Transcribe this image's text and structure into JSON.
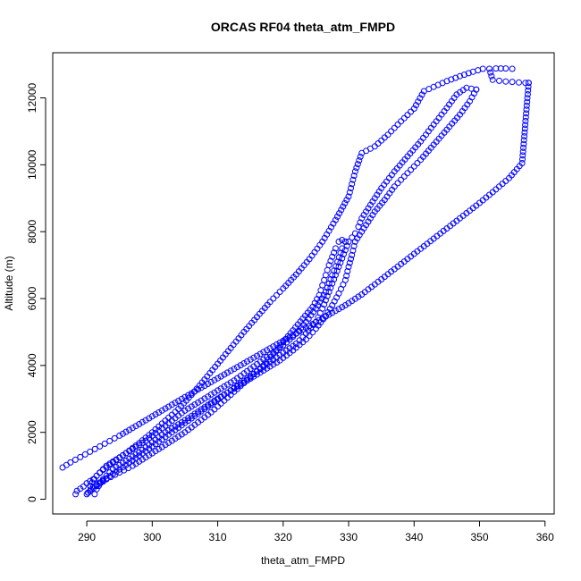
{
  "chart_data": {
    "type": "scatter",
    "title": "ORCAS RF04 theta_atm_FMPD",
    "xlabel": "theta_atm_FMPD",
    "ylabel": "Altitude (m)",
    "xlim": [
      284.8,
      361.4
    ],
    "ylim": [
      -440,
      13350
    ],
    "xticks": [
      290,
      300,
      310,
      320,
      330,
      340,
      350,
      360
    ],
    "yticks": [
      0,
      2000,
      4000,
      6000,
      8000,
      10000,
      12000
    ],
    "marker": "open-circle",
    "color": "#0000ff",
    "grid": false,
    "legend": "none",
    "series": [
      {
        "x": [
          286.3,
          287.5,
          289.0,
          290.5,
          292.0,
          293.5,
          295.0,
          297.0,
          299.5,
          302.0,
          304.5,
          307.0,
          309.5,
          312.0,
          314.5,
          317.0,
          319.5,
          322.0,
          324.5,
          327.0,
          329.5,
          332.0,
          334.5,
          337.0,
          339.5,
          342.0,
          344.5,
          347.0,
          349.5,
          352.0,
          354.5,
          356.5,
          357.5
        ],
        "y": [
          950,
          1100,
          1260,
          1420,
          1580,
          1740,
          1900,
          2130,
          2420,
          2710,
          3000,
          3280,
          3560,
          3840,
          4120,
          4400,
          4680,
          4960,
          5240,
          5520,
          5800,
          6120,
          6500,
          6880,
          7260,
          7640,
          8020,
          8400,
          8780,
          9180,
          9600,
          10050,
          12450
        ]
      },
      {
        "x": [
          357.5,
          357.0,
          356.0,
          355.0,
          354.0,
          353.0,
          352.0,
          351.5,
          352.5,
          354.0,
          355.0
        ],
        "y": [
          12450,
          12450,
          12460,
          12480,
          12490,
          12510,
          12540,
          12870,
          12880,
          12880,
          12870
        ]
      },
      {
        "x": [
          350.5,
          349.0,
          347.0,
          345.0,
          343.0,
          341.5,
          340.0,
          338.0,
          336.0,
          334.0,
          332.0,
          331.0,
          330.0,
          328.0,
          326.0,
          324.0,
          322.0,
          320.0,
          318.0,
          316.0,
          314.0,
          312.0,
          310.0,
          308.0,
          306.0,
          304.0,
          302.0,
          300.0,
          298.0,
          296.0,
          294.0,
          292.5,
          291.5,
          291.0,
          290.0,
          289.5,
          288.5,
          288.3
        ],
        "y": [
          12870,
          12780,
          12650,
          12500,
          12330,
          12200,
          11680,
          11300,
          10900,
          10550,
          10350,
          9800,
          9050,
          8350,
          7700,
          7180,
          6720,
          6300,
          5900,
          5450,
          5000,
          4520,
          4050,
          3580,
          3120,
          2700,
          2350,
          2000,
          1680,
          1380,
          1100,
          880,
          700,
          600,
          480,
          380,
          250,
          150
        ]
      },
      {
        "x": [
          291.2,
          291.5,
          292.5,
          294.0,
          296.0,
          298.0,
          300.0,
          302.0,
          304.5,
          307.0,
          309.5,
          312.0,
          314.5,
          317.0,
          319.5,
          321.5,
          323.5,
          325.0,
          326.5,
          327.5,
          328.5,
          329.5,
          330.0,
          330.5,
          331.0,
          332.0,
          333.0,
          334.0,
          335.5,
          337.0,
          339.0,
          341.0,
          343.0,
          345.0,
          347.0,
          348.5,
          349.5
        ],
        "y": [
          150,
          300,
          600,
          900,
          1150,
          1400,
          1700,
          2000,
          2300,
          2620,
          2950,
          3250,
          3550,
          3850,
          4150,
          4450,
          4780,
          5100,
          5480,
          5800,
          6150,
          6550,
          6950,
          7300,
          7700,
          8000,
          8300,
          8600,
          8950,
          9350,
          9750,
          10150,
          10600,
          11050,
          11500,
          11900,
          12250
        ]
      },
      {
        "x": [
          349.5,
          348.0,
          346.5,
          345.0,
          343.0,
          341.0,
          339.0,
          337.0,
          335.0,
          334.0,
          333.0,
          332.0,
          331.5,
          331.0,
          330.0,
          329.0,
          328.0,
          327.0,
          326.0,
          325.0,
          323.5,
          322.0,
          320.0,
          318.0,
          316.0,
          314.0,
          312.0,
          310.0,
          308.0,
          306.0,
          304.0,
          302.0,
          300.0,
          298.0,
          296.0,
          294.0,
          292.5,
          291.0,
          290.2
        ],
        "y": [
          12250,
          12300,
          12100,
          11700,
          11200,
          10700,
          10250,
          9800,
          9300,
          9000,
          8700,
          8400,
          8150,
          7950,
          7700,
          7200,
          6700,
          6200,
          5700,
          5300,
          4950,
          4650,
          4380,
          4100,
          3820,
          3540,
          3260,
          2980,
          2700,
          2420,
          2140,
          1860,
          1580,
          1300,
          1020,
          760,
          560,
          380,
          200
        ]
      },
      {
        "x": [
          290.2,
          290.5,
          291.5,
          293.0,
          295.0,
          297.0,
          299.0,
          301.0,
          303.0,
          305.0,
          307.5,
          310.0,
          312.5,
          315.0,
          317.5,
          320.0,
          322.0,
          323.5,
          325.0,
          326.5,
          327.5,
          328.3,
          329.0,
          329.5
        ],
        "y": [
          200,
          400,
          700,
          1000,
          1250,
          1500,
          1750,
          2050,
          2350,
          2650,
          2950,
          3250,
          3550,
          3900,
          4250,
          4600,
          4950,
          5300,
          5700,
          6200,
          6700,
          7100,
          7500,
          7700
        ]
      },
      {
        "x": [
          329.5,
          329.0,
          328.5,
          328.0,
          327.5,
          327.0,
          326.5,
          326.0,
          325.5,
          324.5,
          323.0,
          321.5,
          320.0,
          318.5,
          317.0,
          315.0,
          313.0,
          311.0,
          309.0,
          307.0,
          305.0,
          303.0,
          301.0,
          299.0,
          297.0,
          295.0,
          293.0,
          291.5,
          290.0
        ],
        "y": [
          7700,
          7750,
          7700,
          7500,
          7250,
          7000,
          6700,
          6400,
          6100,
          5750,
          5400,
          5050,
          4700,
          4350,
          4000,
          3650,
          3300,
          2950,
          2600,
          2300,
          2000,
          1750,
          1500,
          1250,
          1000,
          800,
          600,
          400,
          150
        ]
      }
    ]
  }
}
